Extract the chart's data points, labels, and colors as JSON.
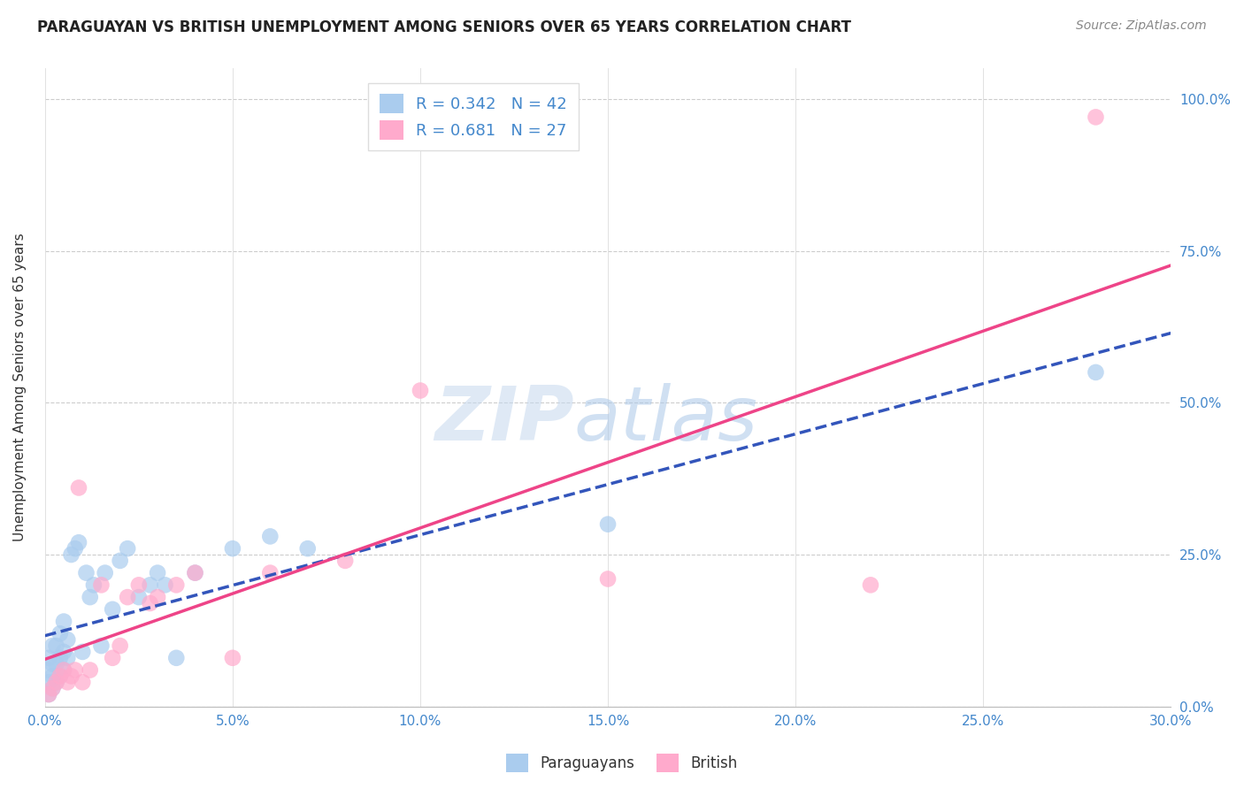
{
  "title": "PARAGUAYAN VS BRITISH UNEMPLOYMENT AMONG SENIORS OVER 65 YEARS CORRELATION CHART",
  "source": "Source: ZipAtlas.com",
  "ylabel": "Unemployment Among Seniors over 65 years",
  "xlim": [
    0.0,
    0.3
  ],
  "ylim": [
    0.0,
    1.05
  ],
  "paraguayan_R": 0.342,
  "paraguayan_N": 42,
  "british_R": 0.681,
  "british_N": 27,
  "paraguayan_color": "#aaccee",
  "british_color": "#ffaacc",
  "paraguayan_line_color": "#3355bb",
  "british_line_color": "#ee4488",
  "paraguayan_x": [
    0.001,
    0.001,
    0.001,
    0.001,
    0.002,
    0.002,
    0.002,
    0.002,
    0.003,
    0.003,
    0.003,
    0.004,
    0.004,
    0.004,
    0.005,
    0.005,
    0.005,
    0.006,
    0.006,
    0.007,
    0.008,
    0.009,
    0.01,
    0.011,
    0.012,
    0.013,
    0.015,
    0.016,
    0.018,
    0.02,
    0.022,
    0.025,
    0.028,
    0.03,
    0.032,
    0.035,
    0.04,
    0.05,
    0.06,
    0.07,
    0.15,
    0.28
  ],
  "paraguayan_y": [
    0.02,
    0.04,
    0.06,
    0.08,
    0.03,
    0.05,
    0.07,
    0.1,
    0.04,
    0.07,
    0.1,
    0.05,
    0.08,
    0.12,
    0.06,
    0.09,
    0.14,
    0.08,
    0.11,
    0.25,
    0.26,
    0.27,
    0.09,
    0.22,
    0.18,
    0.2,
    0.1,
    0.22,
    0.16,
    0.24,
    0.26,
    0.18,
    0.2,
    0.22,
    0.2,
    0.08,
    0.22,
    0.26,
    0.28,
    0.26,
    0.3,
    0.55
  ],
  "british_x": [
    0.001,
    0.002,
    0.003,
    0.004,
    0.005,
    0.006,
    0.007,
    0.008,
    0.009,
    0.01,
    0.012,
    0.015,
    0.018,
    0.02,
    0.022,
    0.025,
    0.028,
    0.03,
    0.035,
    0.04,
    0.05,
    0.06,
    0.08,
    0.1,
    0.15,
    0.22,
    0.28
  ],
  "british_y": [
    0.02,
    0.03,
    0.04,
    0.05,
    0.06,
    0.04,
    0.05,
    0.06,
    0.36,
    0.04,
    0.06,
    0.2,
    0.08,
    0.1,
    0.18,
    0.2,
    0.17,
    0.18,
    0.2,
    0.22,
    0.08,
    0.22,
    0.24,
    0.52,
    0.21,
    0.2,
    0.97
  ],
  "watermark_zip": "ZIP",
  "watermark_atlas": "atlas",
  "legend_paraguayans": "Paraguayans",
  "legend_british": "British",
  "x_tick_vals": [
    0.0,
    0.05,
    0.1,
    0.15,
    0.2,
    0.25,
    0.3
  ],
  "x_tick_labels": [
    "0.0%",
    "5.0%",
    "10.0%",
    "15.0%",
    "20.0%",
    "25.0%",
    "30.0%"
  ],
  "y_tick_vals": [
    0.0,
    0.25,
    0.5,
    0.75,
    1.0
  ],
  "y_tick_labels": [
    "0.0%",
    "25.0%",
    "50.0%",
    "75.0%",
    "100.0%"
  ]
}
